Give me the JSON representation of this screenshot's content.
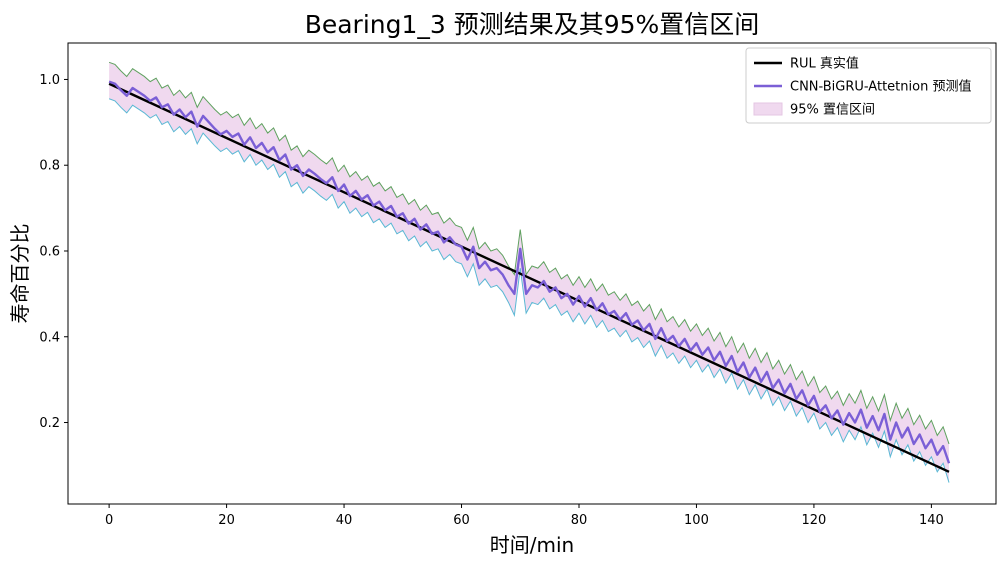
{
  "chart_data": {
    "type": "line",
    "title": "Bearing1_3 预测结果及其95%置信区间",
    "xlabel": "时间/min",
    "ylabel": "寿命百分比",
    "xlim": [
      -7,
      151
    ],
    "ylim": [
      0.01,
      1.085
    ],
    "xticks": [
      0,
      20,
      40,
      60,
      80,
      100,
      120,
      140
    ],
    "yticks": [
      0.2,
      0.4,
      0.6,
      0.8,
      1.0
    ],
    "ytick_labels": [
      "0.2",
      "0.4",
      "0.6",
      "0.8",
      "1.0"
    ],
    "grid": false,
    "legend_position": "top-right",
    "x": [
      0,
      1,
      2,
      3,
      4,
      5,
      6,
      7,
      8,
      9,
      10,
      11,
      12,
      13,
      14,
      15,
      16,
      17,
      18,
      19,
      20,
      21,
      22,
      23,
      24,
      25,
      26,
      27,
      28,
      29,
      30,
      31,
      32,
      33,
      34,
      35,
      36,
      37,
      38,
      39,
      40,
      41,
      42,
      43,
      44,
      45,
      46,
      47,
      48,
      49,
      50,
      51,
      52,
      53,
      54,
      55,
      56,
      57,
      58,
      59,
      60,
      61,
      62,
      63,
      64,
      65,
      66,
      67,
      68,
      69,
      70,
      71,
      72,
      73,
      74,
      75,
      76,
      77,
      78,
      79,
      80,
      81,
      82,
      83,
      84,
      85,
      86,
      87,
      88,
      89,
      90,
      91,
      92,
      93,
      94,
      95,
      96,
      97,
      98,
      99,
      100,
      101,
      102,
      103,
      104,
      105,
      106,
      107,
      108,
      109,
      110,
      111,
      112,
      113,
      114,
      115,
      116,
      117,
      118,
      119,
      120,
      121,
      122,
      123,
      124,
      125,
      126,
      127,
      128,
      129,
      130,
      131,
      132,
      133,
      134,
      135,
      136,
      137,
      138,
      139,
      140,
      141,
      142,
      143
    ],
    "series": [
      {
        "name": "RUL 真实值",
        "role": "true",
        "color": "#000000",
        "x": [
          0,
          143
        ],
        "values": [
          0.99,
          0.085
        ]
      },
      {
        "name": "CNN-BiGRU-Attetnion 预测值",
        "role": "pred",
        "color": "#7b5fd6",
        "values": [
          0.995,
          0.99,
          0.975,
          0.962,
          0.98,
          0.971,
          0.962,
          0.95,
          0.958,
          0.935,
          0.942,
          0.918,
          0.93,
          0.912,
          0.925,
          0.89,
          0.915,
          0.9,
          0.885,
          0.872,
          0.88,
          0.866,
          0.874,
          0.848,
          0.865,
          0.84,
          0.852,
          0.83,
          0.842,
          0.812,
          0.825,
          0.79,
          0.8,
          0.775,
          0.79,
          0.78,
          0.768,
          0.758,
          0.772,
          0.74,
          0.755,
          0.728,
          0.74,
          0.72,
          0.73,
          0.706,
          0.715,
          0.695,
          0.705,
          0.68,
          0.688,
          0.664,
          0.675,
          0.65,
          0.662,
          0.64,
          0.645,
          0.62,
          0.632,
          0.615,
          0.61,
          0.58,
          0.61,
          0.56,
          0.575,
          0.555,
          0.56,
          0.545,
          0.52,
          0.5,
          0.605,
          0.5,
          0.52,
          0.515,
          0.53,
          0.505,
          0.515,
          0.49,
          0.5,
          0.475,
          0.495,
          0.47,
          0.49,
          0.462,
          0.478,
          0.452,
          0.46,
          0.44,
          0.455,
          0.428,
          0.438,
          0.415,
          0.43,
          0.395,
          0.42,
          0.39,
          0.402,
          0.378,
          0.395,
          0.368,
          0.385,
          0.358,
          0.375,
          0.345,
          0.365,
          0.332,
          0.355,
          0.318,
          0.34,
          0.305,
          0.328,
          0.295,
          0.318,
          0.28,
          0.3,
          0.268,
          0.29,
          0.255,
          0.275,
          0.24,
          0.262,
          0.225,
          0.24,
          0.21,
          0.228,
          0.195,
          0.222,
          0.2,
          0.23,
          0.188,
          0.215,
          0.182,
          0.22,
          0.16,
          0.2,
          0.165,
          0.188,
          0.15,
          0.172,
          0.14,
          0.16,
          0.125,
          0.145,
          0.105
        ]
      },
      {
        "name": "95% 置信区间",
        "role": "band",
        "color": "#f0d9ef",
        "upper_color": "#5fa15f",
        "lower_color": "#5ab8d4",
        "upper": [
          1.04,
          1.035,
          1.02,
          1.007,
          1.025,
          1.016,
          1.007,
          0.995,
          1.003,
          0.98,
          0.987,
          0.963,
          0.975,
          0.957,
          0.97,
          0.935,
          0.96,
          0.945,
          0.93,
          0.917,
          0.925,
          0.911,
          0.919,
          0.893,
          0.91,
          0.885,
          0.897,
          0.875,
          0.887,
          0.857,
          0.87,
          0.835,
          0.845,
          0.82,
          0.835,
          0.825,
          0.813,
          0.803,
          0.817,
          0.785,
          0.8,
          0.773,
          0.785,
          0.765,
          0.775,
          0.751,
          0.76,
          0.74,
          0.75,
          0.725,
          0.733,
          0.709,
          0.72,
          0.695,
          0.707,
          0.685,
          0.69,
          0.665,
          0.677,
          0.66,
          0.655,
          0.625,
          0.655,
          0.605,
          0.62,
          0.6,
          0.605,
          0.59,
          0.565,
          0.545,
          0.65,
          0.545,
          0.565,
          0.56,
          0.575,
          0.55,
          0.56,
          0.535,
          0.545,
          0.52,
          0.54,
          0.515,
          0.535,
          0.507,
          0.523,
          0.497,
          0.505,
          0.485,
          0.5,
          0.473,
          0.483,
          0.46,
          0.475,
          0.44,
          0.465,
          0.435,
          0.447,
          0.423,
          0.44,
          0.413,
          0.43,
          0.403,
          0.42,
          0.39,
          0.41,
          0.377,
          0.4,
          0.363,
          0.385,
          0.35,
          0.373,
          0.34,
          0.363,
          0.325,
          0.345,
          0.313,
          0.335,
          0.3,
          0.32,
          0.285,
          0.307,
          0.27,
          0.285,
          0.255,
          0.273,
          0.24,
          0.267,
          0.245,
          0.275,
          0.233,
          0.26,
          0.227,
          0.265,
          0.205,
          0.245,
          0.21,
          0.233,
          0.195,
          0.217,
          0.185,
          0.205,
          0.17,
          0.19,
          0.15
        ],
        "lower": [
          0.955,
          0.95,
          0.935,
          0.922,
          0.94,
          0.931,
          0.922,
          0.91,
          0.918,
          0.895,
          0.902,
          0.878,
          0.89,
          0.872,
          0.885,
          0.85,
          0.875,
          0.86,
          0.845,
          0.832,
          0.84,
          0.826,
          0.834,
          0.808,
          0.825,
          0.8,
          0.812,
          0.79,
          0.802,
          0.772,
          0.785,
          0.75,
          0.76,
          0.735,
          0.75,
          0.74,
          0.728,
          0.718,
          0.732,
          0.7,
          0.715,
          0.688,
          0.7,
          0.68,
          0.69,
          0.666,
          0.675,
          0.655,
          0.665,
          0.64,
          0.648,
          0.624,
          0.635,
          0.61,
          0.622,
          0.6,
          0.605,
          0.58,
          0.592,
          0.575,
          0.57,
          0.54,
          0.57,
          0.52,
          0.535,
          0.515,
          0.52,
          0.505,
          0.48,
          0.45,
          0.56,
          0.455,
          0.48,
          0.475,
          0.49,
          0.465,
          0.475,
          0.45,
          0.46,
          0.435,
          0.455,
          0.43,
          0.45,
          0.422,
          0.438,
          0.412,
          0.42,
          0.4,
          0.415,
          0.388,
          0.398,
          0.375,
          0.39,
          0.355,
          0.38,
          0.35,
          0.362,
          0.338,
          0.355,
          0.328,
          0.345,
          0.318,
          0.335,
          0.305,
          0.325,
          0.292,
          0.315,
          0.278,
          0.3,
          0.265,
          0.288,
          0.255,
          0.278,
          0.24,
          0.26,
          0.228,
          0.25,
          0.215,
          0.235,
          0.2,
          0.222,
          0.185,
          0.2,
          0.17,
          0.188,
          0.155,
          0.182,
          0.16,
          0.19,
          0.148,
          0.175,
          0.142,
          0.18,
          0.12,
          0.16,
          0.125,
          0.148,
          0.11,
          0.132,
          0.1,
          0.12,
          0.085,
          0.105,
          0.06
        ]
      }
    ]
  }
}
